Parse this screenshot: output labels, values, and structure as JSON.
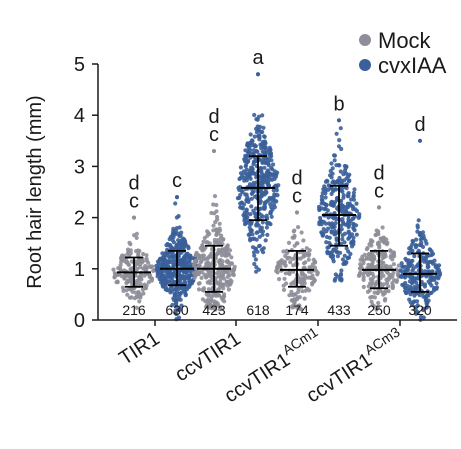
{
  "chart_data": {
    "type": "scatter",
    "ylabel": "Root hair length (mm)",
    "ylim": [
      0,
      5
    ],
    "yticks": [
      "0",
      "1",
      "2",
      "3",
      "4",
      "5"
    ],
    "legend": {
      "placement": "top-right",
      "entries": [
        {
          "label": "Mock",
          "color": "#8e8e99"
        },
        {
          "label": "cvxIAA",
          "color": "#3a5f9a"
        }
      ]
    },
    "groups": [
      {
        "name": "TIR1",
        "sup": ""
      },
      {
        "name": "ccvTIR1",
        "sup": ""
      },
      {
        "name": "ccvTIR1",
        "sup": "ACm1"
      },
      {
        "name": "ccvTIR1",
        "sup": "ACm3"
      }
    ],
    "series": [
      {
        "group": 0,
        "treatment": "Mock",
        "color": "#8e8e99",
        "n": "216",
        "mean": 0.93,
        "sd_low": 0.65,
        "sd_high": 1.22,
        "max": 2.0,
        "min": 0.2,
        "letter_lines": [
          "d",
          "c"
        ]
      },
      {
        "group": 0,
        "treatment": "cvxIAA",
        "color": "#3a5f9a",
        "n": "630",
        "mean": 1.0,
        "sd_low": 0.68,
        "sd_high": 1.35,
        "max": 2.4,
        "min": 0.0,
        "letter_lines": [
          "c"
        ]
      },
      {
        "group": 1,
        "treatment": "Mock",
        "color": "#8e8e99",
        "n": "423",
        "mean": 1.0,
        "sd_low": 0.55,
        "sd_high": 1.45,
        "max": 3.3,
        "min": 0.2,
        "letter_lines": [
          "d",
          "c"
        ]
      },
      {
        "group": 1,
        "treatment": "cvxIAA",
        "color": "#3a5f9a",
        "n": "618",
        "mean": 2.58,
        "sd_low": 1.95,
        "sd_high": 3.2,
        "max": 4.8,
        "min": 0.9,
        "letter_lines": [
          "a"
        ]
      },
      {
        "group": 2,
        "treatment": "Mock",
        "color": "#8e8e99",
        "n": "174",
        "mean": 0.98,
        "sd_low": 0.65,
        "sd_high": 1.35,
        "max": 2.1,
        "min": 0.2,
        "letter_lines": [
          "d",
          "c"
        ]
      },
      {
        "group": 2,
        "treatment": "cvxIAA",
        "color": "#3a5f9a",
        "n": "433",
        "mean": 2.05,
        "sd_low": 1.45,
        "sd_high": 2.62,
        "max": 3.9,
        "min": 0.7,
        "letter_lines": [
          "b"
        ]
      },
      {
        "group": 3,
        "treatment": "Mock",
        "color": "#8e8e99",
        "n": "250",
        "mean": 0.98,
        "sd_low": 0.62,
        "sd_high": 1.35,
        "max": 2.2,
        "min": 0.2,
        "letter_lines": [
          "d",
          "c"
        ]
      },
      {
        "group": 3,
        "treatment": "cvxIAA",
        "color": "#3a5f9a",
        "n": "320",
        "mean": 0.9,
        "sd_low": 0.55,
        "sd_high": 1.3,
        "max": 3.5,
        "min": 0.0,
        "letter_lines": [
          "d"
        ]
      }
    ]
  }
}
